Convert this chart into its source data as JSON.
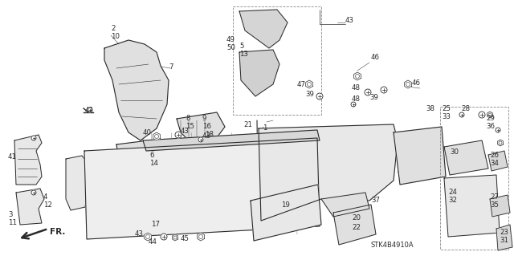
{
  "bg_color": "#ffffff",
  "line_color": "#2a2a2a",
  "watermark": "STK4B4910A",
  "figsize": [
    6.4,
    3.19
  ],
  "dpi": 100
}
